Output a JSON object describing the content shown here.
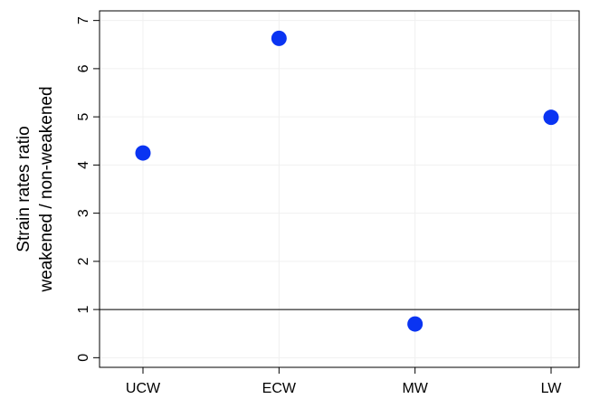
{
  "chart_data": {
    "type": "scatter",
    "title": "",
    "xlabel": "",
    "ylabel_line1": "Strain rates ratio",
    "ylabel_line2": "weakened / non-weakened",
    "categories": [
      "UCW",
      "ECW",
      "MW",
      "LW"
    ],
    "values": [
      4.25,
      6.63,
      0.7,
      4.99
    ],
    "ylim": [
      -0.2,
      7.2
    ],
    "yticks": [
      "0",
      "1",
      "2",
      "3",
      "4",
      "5",
      "6",
      "7"
    ],
    "reference_line": 1,
    "grid": false,
    "point_color": "#0a34f2",
    "axis_color": "#000000",
    "grid_color": "#f0f0f0"
  }
}
